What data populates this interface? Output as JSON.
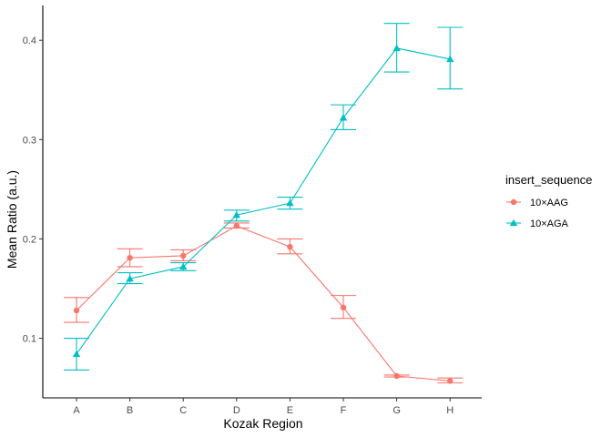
{
  "chart_data": {
    "type": "line",
    "xlabel": "Kozak Region",
    "ylabel": "Mean Ratio (a.u.)",
    "categories": [
      "A",
      "B",
      "C",
      "D",
      "E",
      "F",
      "G",
      "H"
    ],
    "ylim": [
      0.04,
      0.435
    ],
    "yticks": [
      0.1,
      0.2,
      0.3,
      0.4
    ],
    "ytick_labels": [
      "0.1",
      "0.2",
      "0.3",
      "0.4"
    ],
    "grid": false,
    "legend": {
      "title": "insert_sequence",
      "placement": "right"
    },
    "series": [
      {
        "name": "10×AAG",
        "color": "#F8766D",
        "marker": "circle",
        "values": [
          0.128,
          0.181,
          0.183,
          0.213,
          0.192,
          0.131,
          0.062,
          0.057
        ],
        "err_low": [
          0.116,
          0.172,
          0.178,
          0.211,
          0.185,
          0.12,
          0.061,
          0.055
        ],
        "err_high": [
          0.141,
          0.19,
          0.189,
          0.216,
          0.2,
          0.143,
          0.063,
          0.06
        ]
      },
      {
        "name": "10×AGA",
        "color": "#00BFC4",
        "marker": "triangle",
        "values": [
          0.084,
          0.16,
          0.172,
          0.224,
          0.236,
          0.322,
          0.392,
          0.381
        ],
        "err_low": [
          0.068,
          0.155,
          0.168,
          0.218,
          0.23,
          0.31,
          0.368,
          0.351
        ],
        "err_high": [
          0.1,
          0.166,
          0.176,
          0.229,
          0.242,
          0.335,
          0.417,
          0.413
        ]
      }
    ]
  }
}
